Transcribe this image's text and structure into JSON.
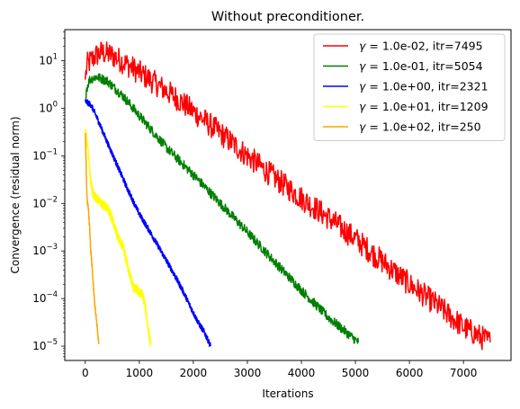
{
  "chart_data": {
    "type": "line",
    "title": "Without preconditioner.",
    "xlabel": "Iterations",
    "ylabel": "Convergence (residual norm)",
    "xlim": [
      -380,
      7880
    ],
    "ylim": [
      5e-06,
      45
    ],
    "yscale": "log",
    "x_ticks": [
      0,
      1000,
      2000,
      3000,
      4000,
      5000,
      6000,
      7000
    ],
    "y_ticks": [
      1e-05,
      0.0001,
      0.001,
      0.01,
      0.1,
      1,
      10
    ],
    "y_tick_labels": [
      {
        "base": "10",
        "exp": "−5"
      },
      {
        "base": "10",
        "exp": "−4"
      },
      {
        "base": "10",
        "exp": "−3"
      },
      {
        "base": "10",
        "exp": "−2"
      },
      {
        "base": "10",
        "exp": "−1"
      },
      {
        "base": "10",
        "exp": "0"
      },
      {
        "base": "10",
        "exp": "1"
      }
    ],
    "grid": false,
    "legend_position": "top-right",
    "series": [
      {
        "name_gamma": "γ",
        "name_rest": " = 1.0e-02, itr=7495",
        "color": "#ff0000",
        "x": [
          0,
          30,
          100,
          200,
          300,
          500,
          800,
          1200,
          1700,
          2500,
          3000,
          3500,
          4000,
          4500,
          5000,
          5500,
          6000,
          6500,
          7000,
          7495
        ],
        "y": [
          4.0,
          8.0,
          10,
          13,
          15,
          13,
          8,
          4,
          1.6,
          0.3,
          0.1,
          0.035,
          0.013,
          0.005,
          0.0018,
          0.0006,
          0.0002,
          7.5e-05,
          2.5e-05,
          1.2e-05
        ],
        "noise": 0.26
      },
      {
        "name_gamma": "γ",
        "name_rest": " = 1.0e-01, itr=5054",
        "color": "#008000",
        "x": [
          0,
          20,
          80,
          200,
          400,
          700,
          1000,
          1500,
          2000,
          2500,
          3000,
          3500,
          4000,
          4500,
          5054
        ],
        "y": [
          1.4,
          2.5,
          4.0,
          4.6,
          3.8,
          1.8,
          0.7,
          0.15,
          0.04,
          0.01,
          0.0025,
          0.0006,
          0.00015,
          4e-05,
          1.2e-05
        ],
        "noise": 0.1
      },
      {
        "name_gamma": "γ",
        "name_rest": " = 1.0e+00, itr=2321",
        "color": "#0000ff",
        "x": [
          0,
          100,
          200,
          400,
          600,
          800,
          1000,
          1200,
          1400,
          1600,
          1800,
          2000,
          2100,
          2200,
          2321
        ],
        "y": [
          1.4,
          1.2,
          0.7,
          0.2,
          0.06,
          0.018,
          0.006,
          0.0025,
          0.001,
          0.0004,
          0.00015,
          5e-05,
          3e-05,
          2e-05,
          1e-05
        ],
        "noise": 0.06
      },
      {
        "name_gamma": "γ",
        "name_rest": " = 1.0e+01, itr=1209",
        "color": "#ffff00",
        "x": [
          0,
          20,
          60,
          100,
          150,
          200,
          300,
          350,
          400,
          450,
          500,
          600,
          650,
          700,
          750,
          800,
          850,
          900,
          950,
          1000,
          1050,
          1100,
          1150,
          1209
        ],
        "y": [
          0.35,
          0.25,
          0.1,
          0.03,
          0.015,
          0.013,
          0.01,
          0.009,
          0.008,
          0.0065,
          0.0045,
          0.002,
          0.0015,
          0.0012,
          0.0007,
          0.0004,
          0.00025,
          0.00016,
          0.00016,
          0.00013,
          0.00013,
          8e-05,
          3e-05,
          1.1e-05
        ],
        "noise": 0.09
      },
      {
        "name_gamma": "γ",
        "name_rest": " = 1.0e+02, itr=250",
        "color": "#ffa500",
        "x": [
          0,
          10,
          25,
          40,
          60,
          80,
          100,
          130,
          160,
          190,
          220,
          250
        ],
        "y": [
          0.3,
          0.12,
          0.02,
          0.01,
          0.007,
          0.003,
          0.001,
          0.0004,
          0.00012,
          5e-05,
          2.5e-05,
          1.1e-05
        ],
        "noise": 0.06
      }
    ]
  }
}
